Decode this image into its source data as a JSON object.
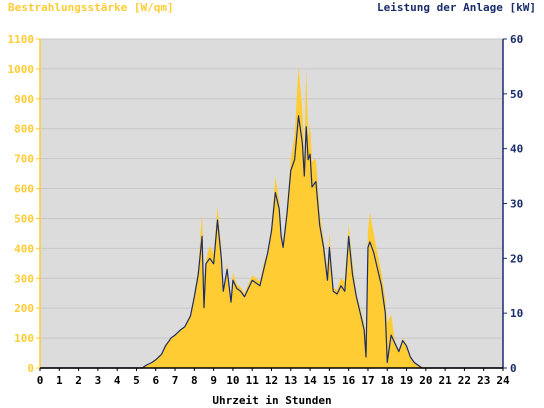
{
  "chart_data": {
    "type": "area",
    "left_axis_label": "Bestrahlungsstärke [W/qm]",
    "right_axis_label": "Leistung der Anlage [kW]",
    "xlabel": "Uhrzeit in Stunden",
    "x_ticks": [
      "0",
      "1",
      "2",
      "3",
      "4",
      "5",
      "6",
      "7",
      "8",
      "9",
      "10",
      "11",
      "12",
      "13",
      "14",
      "15",
      "16",
      "17",
      "18",
      "19",
      "20",
      "21",
      "22",
      "23",
      "24"
    ],
    "y_left_ticks": [
      "0",
      "100",
      "200",
      "300",
      "400",
      "500",
      "600",
      "700",
      "800",
      "900",
      "1000",
      "1100"
    ],
    "y_right_ticks": [
      "0",
      "10",
      "20",
      "30",
      "40",
      "50",
      "60"
    ],
    "xlim": [
      0,
      24
    ],
    "ylim_left": [
      0,
      1100
    ],
    "ylim_right": [
      0,
      60
    ],
    "colors": {
      "irradiance": "#ffcc33",
      "power": "#1a2c6b",
      "background": "#dcdcdc",
      "left_axis": "#ffcc33",
      "right_axis": "#1a2c6b"
    },
    "series": [
      {
        "name": "Bestrahlungsstärke [W/qm]",
        "axis": "left",
        "style": "area",
        "x": [
          0,
          5.3,
          5.5,
          5.8,
          6.0,
          6.3,
          6.5,
          6.8,
          7.0,
          7.3,
          7.5,
          7.8,
          8.0,
          8.2,
          8.4,
          8.5,
          8.6,
          8.8,
          9.0,
          9.2,
          9.4,
          9.5,
          9.7,
          9.9,
          10.0,
          10.2,
          10.4,
          10.6,
          10.8,
          11.0,
          11.2,
          11.4,
          11.6,
          11.8,
          12.0,
          12.2,
          12.4,
          12.5,
          12.6,
          12.8,
          13.0,
          13.2,
          13.4,
          13.6,
          13.7,
          13.8,
          13.9,
          14.0,
          14.1,
          14.3,
          14.5,
          14.7,
          14.9,
          15.0,
          15.2,
          15.4,
          15.6,
          15.8,
          16.0,
          16.2,
          16.4,
          16.6,
          16.8,
          16.9,
          17.0,
          17.1,
          17.3,
          17.5,
          17.7,
          17.9,
          18.0,
          18.2,
          18.4,
          18.6,
          18.8,
          19.0,
          19.2,
          19.4,
          19.6,
          19.8,
          20.0,
          24
        ],
        "values": [
          0,
          0,
          10,
          20,
          30,
          50,
          80,
          100,
          110,
          130,
          140,
          180,
          250,
          330,
          520,
          300,
          360,
          410,
          380,
          540,
          400,
          260,
          350,
          220,
          320,
          280,
          270,
          250,
          280,
          310,
          300,
          290,
          350,
          390,
          480,
          640,
          560,
          460,
          420,
          540,
          700,
          780,
          1010,
          860,
          700,
          1000,
          770,
          820,
          690,
          700,
          520,
          430,
          320,
          450,
          270,
          260,
          300,
          290,
          480,
          350,
          250,
          200,
          150,
          100,
          460,
          520,
          450,
          380,
          320,
          230,
          150,
          180,
          90,
          60,
          100,
          80,
          40,
          20,
          10,
          5,
          0,
          0
        ]
      },
      {
        "name": "Leistung der Anlage [kW]",
        "axis": "right",
        "style": "line",
        "x": [
          0,
          5.3,
          5.5,
          5.8,
          6.0,
          6.3,
          6.5,
          6.8,
          7.0,
          7.3,
          7.5,
          7.8,
          8.0,
          8.2,
          8.4,
          8.5,
          8.6,
          8.8,
          9.0,
          9.2,
          9.4,
          9.5,
          9.7,
          9.9,
          10.0,
          10.2,
          10.4,
          10.6,
          10.8,
          11.0,
          11.2,
          11.4,
          11.6,
          11.8,
          12.0,
          12.2,
          12.4,
          12.5,
          12.6,
          12.8,
          13.0,
          13.2,
          13.4,
          13.6,
          13.7,
          13.8,
          13.9,
          14.0,
          14.1,
          14.3,
          14.5,
          14.7,
          14.9,
          15.0,
          15.2,
          15.4,
          15.6,
          15.8,
          16.0,
          16.2,
          16.4,
          16.6,
          16.8,
          16.9,
          17.0,
          17.1,
          17.3,
          17.5,
          17.7,
          17.9,
          18.0,
          18.2,
          18.4,
          18.6,
          18.8,
          19.0,
          19.2,
          19.4,
          19.6,
          19.8,
          20.0,
          24
        ],
        "values": [
          0,
          0,
          0.5,
          1,
          1.5,
          2.5,
          4,
          5.5,
          6,
          7,
          7.5,
          9.5,
          13,
          17,
          24,
          11,
          19,
          20,
          19,
          27,
          20,
          14,
          18,
          12,
          16,
          14.5,
          14,
          13,
          14.5,
          16,
          15.5,
          15,
          18,
          21,
          25,
          32,
          29,
          24,
          22,
          28,
          36,
          38,
          46,
          41,
          35,
          44,
          38,
          39,
          33,
          34,
          26,
          22,
          16,
          22,
          14,
          13.5,
          15,
          14,
          24,
          17,
          13,
          10,
          7,
          2,
          22,
          23,
          21,
          18,
          15,
          10,
          1,
          6,
          4.5,
          3,
          5,
          4,
          2,
          1,
          0.5,
          0,
          0,
          0
        ]
      }
    ]
  }
}
